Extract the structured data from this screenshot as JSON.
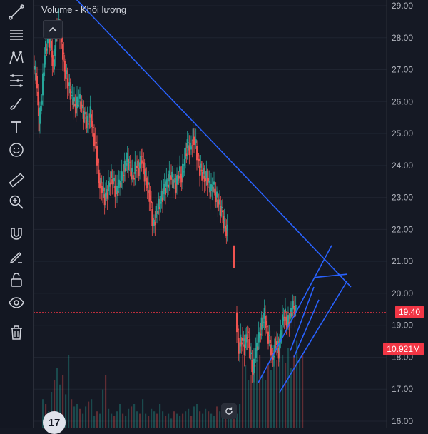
{
  "legend": {
    "volume_label": "Volume - Khối lượng"
  },
  "price_axis": {
    "labels": [
      "29.00",
      "28.00",
      "27.00",
      "26.00",
      "25.00",
      "24.00",
      "23.00",
      "22.00",
      "21.00",
      "20.00",
      "19.00",
      "18.00",
      "17.00",
      "16.00"
    ],
    "current_price": "19.40",
    "current_volume": "10.921M"
  },
  "toolbar": {
    "tools": [
      "trend-line-icon",
      "horizontal-lines-icon",
      "pattern-icon",
      "fib-icon",
      "brush-icon",
      "text-icon",
      "emoji-icon",
      "ruler-icon",
      "zoom-icon",
      "magnet-icon",
      "lock-drawing-icon",
      "unlock-icon",
      "eye-icon",
      "trash-icon"
    ]
  },
  "colors": {
    "up": "#26a69a",
    "down": "#ef5350",
    "drawing": "#2962ff",
    "price_line": "#f23645"
  },
  "logo": {
    "text": "17"
  },
  "chart_data": {
    "type": "candlestick",
    "ylim": [
      16.0,
      29.0
    ],
    "price_ticks": [
      29,
      28,
      27,
      26,
      25,
      24,
      23,
      22,
      21,
      20,
      19,
      18,
      17,
      16
    ],
    "series_path": [
      [
        0,
        27.1
      ],
      [
        4,
        26.8
      ],
      [
        8,
        25.3
      ],
      [
        12,
        26.2
      ],
      [
        16,
        27.5
      ],
      [
        20,
        28.0
      ],
      [
        24,
        27.9
      ],
      [
        28,
        27.0
      ],
      [
        32,
        28.3
      ],
      [
        36,
        28.4
      ],
      [
        40,
        27.8
      ],
      [
        44,
        27.0
      ],
      [
        48,
        26.6
      ],
      [
        52,
        26.3
      ],
      [
        56,
        26.0
      ],
      [
        60,
        25.8
      ],
      [
        64,
        26.1
      ],
      [
        68,
        25.8
      ],
      [
        72,
        25.5
      ],
      [
        76,
        25.3
      ],
      [
        80,
        25.6
      ],
      [
        84,
        25.0
      ],
      [
        88,
        24.6
      ],
      [
        92,
        23.5
      ],
      [
        96,
        23.3
      ],
      [
        100,
        23.0
      ],
      [
        104,
        23.2
      ],
      [
        108,
        23.6
      ],
      [
        112,
        23.5
      ],
      [
        116,
        23.1
      ],
      [
        120,
        23.4
      ],
      [
        124,
        23.6
      ],
      [
        128,
        23.9
      ],
      [
        132,
        24.2
      ],
      [
        136,
        23.9
      ],
      [
        140,
        23.6
      ],
      [
        144,
        24.0
      ],
      [
        148,
        23.9
      ],
      [
        152,
        24.3
      ],
      [
        156,
        23.7
      ],
      [
        160,
        23.4
      ],
      [
        164,
        22.9
      ],
      [
        168,
        22.1
      ],
      [
        172,
        22.5
      ],
      [
        176,
        22.7
      ],
      [
        180,
        23.0
      ],
      [
        184,
        23.3
      ],
      [
        188,
        23.4
      ],
      [
        192,
        23.7
      ],
      [
        196,
        23.5
      ],
      [
        200,
        23.4
      ],
      [
        204,
        23.8
      ],
      [
        208,
        23.6
      ],
      [
        212,
        24.2
      ],
      [
        216,
        24.7
      ],
      [
        220,
        24.5
      ],
      [
        224,
        24.9
      ],
      [
        228,
        24.6
      ],
      [
        232,
        24.0
      ],
      [
        236,
        23.8
      ],
      [
        240,
        23.6
      ],
      [
        244,
        23.6
      ],
      [
        248,
        23.2
      ],
      [
        252,
        23.4
      ],
      [
        256,
        23.0
      ],
      [
        260,
        22.8
      ],
      [
        264,
        22.6
      ],
      [
        268,
        22.1
      ],
      [
        272,
        21.9
      ]
    ],
    "gap_bar": {
      "x": 280,
      "low": 20.8,
      "high": 21.5
    },
    "series_path2": [
      [
        284,
        19.4
      ],
      [
        288,
        18.2
      ],
      [
        292,
        18.6
      ],
      [
        296,
        18.3
      ],
      [
        300,
        18.8
      ],
      [
        304,
        18.1
      ],
      [
        308,
        17.5
      ],
      [
        312,
        18.2
      ],
      [
        316,
        18.6
      ],
      [
        320,
        19.0
      ],
      [
        324,
        19.3
      ],
      [
        328,
        18.8
      ],
      [
        332,
        18.4
      ],
      [
        336,
        18.0
      ],
      [
        340,
        18.5
      ],
      [
        344,
        18.2
      ],
      [
        348,
        19.0
      ],
      [
        352,
        19.4
      ],
      [
        356,
        19.0
      ],
      [
        360,
        19.3
      ],
      [
        364,
        19.6
      ],
      [
        368,
        19.4
      ]
    ],
    "volume_heights": [
      0.12,
      0.1,
      0.07,
      0.15,
      0.2,
      0.25,
      0.18,
      0.22,
      0.14,
      0.3,
      0.12,
      0.09,
      0.1,
      0.08,
      0.06,
      0.09,
      0.11,
      0.12,
      0.05,
      0.07,
      0.06,
      0.16,
      0.22,
      0.08,
      0.06,
      0.05,
      0.07,
      0.1,
      0.06,
      0.05,
      0.08,
      0.09,
      0.1,
      0.07,
      0.06,
      0.12,
      0.06,
      0.05,
      0.08,
      0.07,
      0.06,
      0.1,
      0.07,
      0.05,
      0.06,
      0.04,
      0.07,
      0.06,
      0.05,
      0.06,
      0.07,
      0.08,
      0.05,
      0.09,
      0.1,
      0.07,
      0.06,
      0.08,
      0.07,
      0.06,
      0.05,
      0.09,
      0.07,
      0.06,
      0.08,
      0.07,
      0.06,
      0.05,
      0.06,
      0.1,
      0.3,
      0.26,
      0.2,
      0.22,
      0.25,
      0.28,
      0.3,
      0.22,
      0.2,
      0.26,
      0.24,
      0.32,
      0.28,
      0.35,
      0.3,
      0.27,
      0.33,
      0.25,
      0.3,
      0.36,
      0.29,
      0.31
    ],
    "drawings": [
      {
        "type": "trend",
        "from": [
          60,
          29.2
        ],
        "to": [
          445,
          20.2
        ]
      },
      {
        "type": "trend",
        "from": [
          315,
          17.2
        ],
        "to": [
          418,
          21.5
        ]
      },
      {
        "type": "trend",
        "from": [
          345,
          16.9
        ],
        "to": [
          440,
          20.4
        ]
      },
      {
        "type": "trend",
        "from": [
          360,
          18.2
        ],
        "to": [
          393,
          20.2
        ]
      },
      {
        "type": "trend",
        "from": [
          365,
          18.0
        ],
        "to": [
          400,
          19.8
        ]
      },
      {
        "type": "trend",
        "from": [
          395,
          20.5
        ],
        "to": [
          440,
          20.6
        ]
      }
    ]
  }
}
